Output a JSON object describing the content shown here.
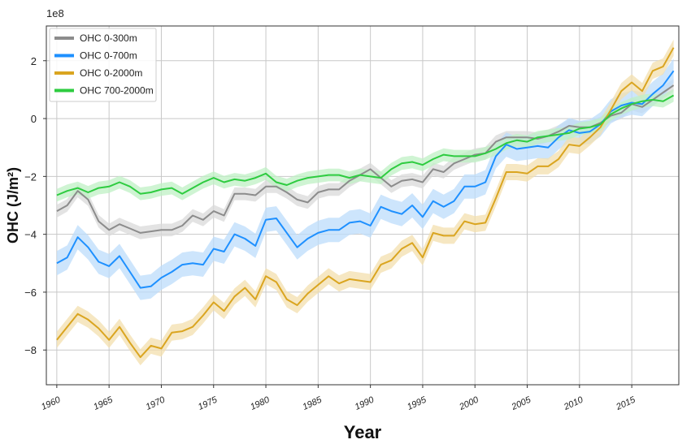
{
  "chart_data": {
    "type": "line",
    "xlabel": "Year",
    "ylabel": "OHC (J/m²)",
    "y_multiplier": "1e8",
    "xlim": [
      1959,
      2019.5
    ],
    "ylim": [
      -9.2,
      3.2
    ],
    "xticks": [
      1960,
      1965,
      1970,
      1975,
      1980,
      1985,
      1990,
      1995,
      2000,
      2005,
      2010,
      2015
    ],
    "yticks": [
      2,
      0,
      -2,
      -4,
      -6,
      -8
    ],
    "ytick_labels": [
      "2",
      "0",
      "−2",
      "−4",
      "−6",
      "−8"
    ],
    "grid": true,
    "legend_position": "top-left",
    "x": [
      1960,
      1961,
      1962,
      1963,
      1964,
      1965,
      1966,
      1967,
      1968,
      1969,
      1970,
      1971,
      1972,
      1973,
      1974,
      1975,
      1976,
      1977,
      1978,
      1979,
      1980,
      1981,
      1982,
      1983,
      1984,
      1985,
      1986,
      1987,
      1988,
      1989,
      1990,
      1991,
      1992,
      1993,
      1994,
      1995,
      1996,
      1997,
      1998,
      1999,
      2000,
      2001,
      2002,
      2003,
      2004,
      2005,
      2006,
      2007,
      2008,
      2009,
      2010,
      2011,
      2012,
      2013,
      2014,
      2015,
      2016,
      2017,
      2018,
      2019
    ],
    "series": [
      {
        "name": "OHC 0-300m",
        "color": "#8c8c8c",
        "band_color": "#d9d9d9",
        "values": [
          -3.2,
          -3.0,
          -2.5,
          -2.8,
          -3.55,
          -3.85,
          -3.65,
          -3.8,
          -3.95,
          -3.9,
          -3.85,
          -3.85,
          -3.7,
          -3.35,
          -3.5,
          -3.2,
          -3.35,
          -2.6,
          -2.6,
          -2.65,
          -2.35,
          -2.35,
          -2.55,
          -2.8,
          -2.9,
          -2.55,
          -2.45,
          -2.45,
          -2.15,
          -1.95,
          -1.75,
          -2.05,
          -2.35,
          -2.15,
          -2.1,
          -2.2,
          -1.75,
          -1.85,
          -1.55,
          -1.4,
          -1.25,
          -1.2,
          -0.8,
          -0.65,
          -0.65,
          -0.65,
          -0.7,
          -0.6,
          -0.45,
          -0.25,
          -0.3,
          -0.3,
          -0.15,
          0.1,
          0.2,
          0.5,
          0.4,
          0.65,
          0.9,
          1.15
        ],
        "band": 0.22
      },
      {
        "name": "OHC 0-700m",
        "color": "#1e90ff",
        "band_color": "#bcdcfb",
        "values": [
          -5.0,
          -4.8,
          -4.1,
          -4.45,
          -4.95,
          -5.1,
          -4.75,
          -5.3,
          -5.85,
          -5.8,
          -5.5,
          -5.3,
          -5.05,
          -5.0,
          -5.05,
          -4.5,
          -4.6,
          -4.0,
          -4.15,
          -4.4,
          -3.5,
          -3.45,
          -3.95,
          -4.45,
          -4.15,
          -3.95,
          -3.85,
          -3.85,
          -3.6,
          -3.55,
          -3.7,
          -3.05,
          -3.2,
          -3.3,
          -3.0,
          -3.4,
          -2.85,
          -3.05,
          -2.85,
          -2.35,
          -2.35,
          -2.2,
          -1.3,
          -0.9,
          -1.05,
          -1.0,
          -0.95,
          -1.0,
          -0.65,
          -0.4,
          -0.5,
          -0.45,
          -0.2,
          0.25,
          0.45,
          0.55,
          0.5,
          0.85,
          1.15,
          1.65
        ],
        "band": 0.42
      },
      {
        "name": "OHC 0-2000m",
        "color": "#daa520",
        "band_color": "#f3dfae",
        "values": [
          -7.65,
          -7.2,
          -6.75,
          -6.95,
          -7.25,
          -7.65,
          -7.2,
          -7.75,
          -8.25,
          -7.85,
          -7.95,
          -7.4,
          -7.35,
          -7.2,
          -6.8,
          -6.35,
          -6.65,
          -6.15,
          -5.85,
          -6.25,
          -5.45,
          -5.65,
          -6.25,
          -6.45,
          -6.05,
          -5.75,
          -5.45,
          -5.7,
          -5.55,
          -5.6,
          -5.65,
          -5.05,
          -4.9,
          -4.5,
          -4.3,
          -4.8,
          -3.95,
          -4.05,
          -4.05,
          -3.55,
          -3.65,
          -3.6,
          -2.75,
          -1.85,
          -1.85,
          -1.9,
          -1.65,
          -1.65,
          -1.4,
          -0.9,
          -0.95,
          -0.65,
          -0.3,
          0.3,
          0.95,
          1.25,
          0.95,
          1.65,
          1.8,
          2.45
        ],
        "band": 0.28
      },
      {
        "name": "OHC 700-2000m",
        "color": "#2ecc40",
        "band_color": "#bff0c4",
        "values": [
          -2.65,
          -2.5,
          -2.4,
          -2.55,
          -2.4,
          -2.35,
          -2.2,
          -2.35,
          -2.6,
          -2.55,
          -2.45,
          -2.4,
          -2.6,
          -2.4,
          -2.2,
          -2.05,
          -2.2,
          -2.1,
          -2.15,
          -2.05,
          -1.9,
          -2.2,
          -2.3,
          -2.15,
          -2.05,
          -2.0,
          -1.95,
          -1.95,
          -2.05,
          -1.95,
          -2.0,
          -2.05,
          -1.75,
          -1.55,
          -1.5,
          -1.6,
          -1.4,
          -1.25,
          -1.3,
          -1.3,
          -1.3,
          -1.2,
          -1.05,
          -0.85,
          -0.75,
          -0.8,
          -0.65,
          -0.6,
          -0.55,
          -0.5,
          -0.35,
          -0.3,
          -0.2,
          0.15,
          0.35,
          0.5,
          0.6,
          0.65,
          0.6,
          0.8
        ],
        "band": 0.22
      }
    ]
  }
}
